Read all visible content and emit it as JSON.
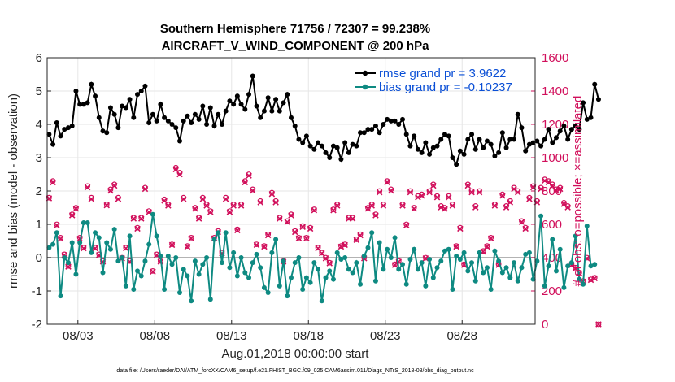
{
  "chart_data": {
    "type": "line",
    "title_line1": "Southern Hemisphere 71756 / 72307 = 99.238%",
    "title_line2": "AIRCRAFT_V_WIND_COMPONENT @ 200 hPa",
    "ylabel_left": "rmse and bias (model - observation)",
    "ylabel_right": "# of obs: o=possible; ×=assimilated",
    "xlabel": "Aug.01,2018 00:00:00 start",
    "footer": "data file: /Users/raeder/DAI/ATM_forcXX/CAM6_setup/f.e21.FHIST_BGC.f09_025.CAM6assim.011/Diags_NTrS_2018-08/obs_diag_output.nc",
    "ylim_left": [
      -2,
      6
    ],
    "yticks_left": [
      "-2",
      "-1",
      "0",
      "1",
      "2",
      "3",
      "4",
      "5",
      "6"
    ],
    "ylim_right": [
      0,
      1600
    ],
    "yticks_right": [
      "0",
      "200",
      "400",
      "600",
      "800",
      "1000",
      "1200",
      "1400",
      "1600"
    ],
    "xlim": [
      1.0,
      32.75
    ],
    "xticks": [
      {
        "day": 3,
        "label": "08/03"
      },
      {
        "day": 8,
        "label": "08/08"
      },
      {
        "day": 13,
        "label": "08/13"
      },
      {
        "day": 18,
        "label": "08/18"
      },
      {
        "day": 23,
        "label": "08/23"
      },
      {
        "day": 28,
        "label": "08/28"
      }
    ],
    "x_start_day": 1.125,
    "x_step_days": 0.25,
    "series": [
      {
        "name": "rmse grand pr = 3.9622",
        "axis": "left",
        "color": "#000000",
        "values": [
          3.7,
          3.4,
          4.05,
          3.65,
          3.85,
          3.9,
          3.95,
          5.0,
          4.6,
          4.6,
          4.65,
          5.2,
          4.85,
          4.2,
          3.8,
          3.75,
          4.5,
          4.3,
          3.9,
          4.55,
          4.5,
          4.75,
          4.2,
          4.9,
          5.0,
          5.15,
          4.05,
          4.3,
          4.1,
          4.6,
          4.2,
          4.1,
          4.0,
          3.9,
          3.5,
          4.1,
          4.25,
          4.05,
          4.3,
          4.15,
          4.55,
          4.0,
          4.5,
          3.95,
          4.3,
          4.0,
          4.4,
          4.7,
          4.6,
          4.85,
          4.6,
          4.45,
          4.9,
          5.45,
          4.55,
          4.2,
          4.4,
          4.8,
          4.4,
          4.75,
          4.4,
          4.65,
          4.9,
          4.2,
          3.95,
          3.55,
          3.45,
          3.65,
          3.35,
          3.25,
          3.45,
          3.35,
          3.15,
          3.0,
          3.35,
          3.3,
          2.95,
          3.45,
          3.15,
          3.4,
          3.35,
          3.75,
          3.75,
          3.85,
          3.85,
          3.95,
          3.75,
          4.0,
          4.15,
          4.1,
          4.1,
          4.0,
          4.15,
          3.7,
          3.35,
          3.65,
          3.25,
          3.15,
          3.45,
          3.1,
          3.3,
          3.35,
          3.55,
          3.7,
          3.65,
          3.0,
          2.8,
          3.2,
          3.1,
          3.55,
          3.7,
          3.25,
          3.55,
          3.3,
          3.5,
          3.4,
          3.05,
          3.15,
          3.75,
          3.3,
          3.55,
          3.55,
          4.3,
          3.9,
          3.2,
          3.4,
          3.45,
          3.5,
          3.35,
          3.55,
          3.85,
          3.45,
          3.6,
          3.8,
          3.95,
          3.55,
          3.85,
          3.95,
          3.85,
          4.65,
          4.15,
          4.2,
          5.2,
          4.75
        ],
        "marker": "circle"
      },
      {
        "name": "bias grand pr = -0.10237",
        "axis": "left",
        "color": "#0e8a82",
        "values": [
          0.3,
          0.4,
          0.75,
          -1.15,
          0.0,
          -0.15,
          0.45,
          -0.5,
          0.45,
          1.05,
          1.05,
          0.15,
          0.75,
          0.6,
          -0.45,
          0.45,
          0.25,
          0.85,
          -0.1,
          0.0,
          -0.85,
          0.65,
          -0.95,
          -0.4,
          -0.55,
          -0.1,
          0.4,
          1.3,
          0.65,
          0.05,
          -0.95,
          0.05,
          -0.2,
          0.0,
          -1.05,
          -0.35,
          -0.55,
          -1.3,
          -0.1,
          -0.5,
          -0.2,
          0.0,
          -1.25,
          0.55,
          0.75,
          -0.15,
          0.75,
          -0.3,
          0.15,
          -0.55,
          0.0,
          -0.45,
          -0.6,
          -0.15,
          0.1,
          -0.3,
          -0.9,
          -1.05,
          0.15,
          0.55,
          -0.85,
          -0.1,
          -1.15,
          -0.6,
          -0.15,
          0.0,
          -0.95,
          -0.6,
          -0.75,
          -0.15,
          -0.35,
          -1.3,
          -0.6,
          -0.4,
          -0.65,
          0.15,
          -0.05,
          0.0,
          -0.35,
          -0.45,
          -0.15,
          -0.8,
          0.05,
          0.3,
          0.75,
          -0.7,
          0.45,
          -0.35,
          0.25,
          0.0,
          0.6,
          -0.35,
          -0.2,
          -0.8,
          -0.05,
          0.25,
          -0.35,
          -0.15,
          -0.85,
          -0.05,
          -0.6,
          -0.3,
          -0.1,
          0.2,
          0.25,
          -0.95,
          0.05,
          -0.05,
          0.15,
          -0.4,
          -0.15,
          -0.7,
          0.15,
          -0.45,
          -0.3,
          -0.95,
          0.2,
          -0.1,
          -0.45,
          -0.3,
          -0.6,
          -0.15,
          -0.7,
          -0.3,
          0.1,
          0.15,
          -0.65,
          -0.1,
          1.25,
          -0.85,
          -0.25,
          0.55,
          -0.4,
          0.25,
          -0.9,
          -0.25,
          -0.15,
          0.65,
          -0.65,
          -0.8,
          0.95,
          -0.25,
          -0.2
        ],
        "marker": "circle"
      },
      {
        "name": "possible obs count",
        "axis": "right",
        "color": "#d10f5b",
        "values": [
          760,
          860,
          600,
          520,
          420,
          350,
          660,
          700,
          520,
          460,
          830,
          760,
          460,
          420,
          380,
          720,
          810,
          840,
          760,
          400,
          460,
          380,
          640,
          580,
          640,
          820,
          680,
          320,
          420,
          380,
          750,
          720,
          480,
          940,
          910,
          760,
          470,
          520,
          700,
          640,
          760,
          720,
          680,
          520,
          560,
          430,
          760,
          680,
          720,
          570,
          720,
          860,
          900,
          810,
          480,
          740,
          470,
          540,
          790,
          740,
          640,
          380,
          620,
          660,
          560,
          520,
          590,
          520,
          580,
          690,
          460,
          430,
          400,
          370,
          690,
          720,
          470,
          480,
          640,
          640,
          510,
          540,
          400,
          700,
          720,
          660,
          800,
          720,
          860,
          810,
          360,
          380,
          720,
          600,
          800,
          700,
          770,
          780,
          400,
          800,
          840,
          770,
          710,
          700,
          770,
          720,
          470,
          580,
          360,
          840,
          800,
          710,
          800,
          440,
          470,
          520,
          720,
          360,
          780,
          710,
          740,
          820,
          800,
          620,
          580,
          760,
          830,
          740,
          820,
          870,
          860,
          840,
          810,
          820,
          730,
          710,
          360,
          340,
          310,
          260,
          400,
          270,
          280,
          0
        ],
        "marker": "circle"
      },
      {
        "name": "assimilated obs count",
        "axis": "right",
        "color": "#d10f5b",
        "values": [
          756,
          852,
          594,
          514,
          416,
          346,
          654,
          694,
          514,
          456,
          822,
          752,
          456,
          416,
          376,
          714,
          802,
          832,
          752,
          396,
          456,
          376,
          634,
          574,
          634,
          812,
          674,
          316,
          416,
          376,
          742,
          712,
          476,
          930,
          900,
          752,
          466,
          516,
          694,
          634,
          752,
          712,
          674,
          516,
          554,
          426,
          752,
          674,
          712,
          564,
          712,
          852,
          892,
          802,
          476,
          732,
          466,
          534,
          782,
          732,
          634,
          376,
          614,
          654,
          554,
          516,
          584,
          516,
          574,
          684,
          456,
          426,
          396,
          366,
          684,
          712,
          466,
          476,
          634,
          634,
          506,
          534,
          396,
          694,
          712,
          654,
          792,
          712,
          852,
          802,
          356,
          376,
          712,
          594,
          792,
          694,
          762,
          772,
          396,
          792,
          832,
          762,
          702,
          694,
          762,
          712,
          466,
          574,
          356,
          832,
          792,
          702,
          792,
          436,
          466,
          516,
          712,
          356,
          772,
          702,
          732,
          812,
          792,
          614,
          574,
          752,
          822,
          732,
          812,
          862,
          852,
          832,
          802,
          812,
          722,
          702,
          356,
          336,
          306,
          256,
          396,
          266,
          276,
          0
        ],
        "marker": "x"
      }
    ],
    "zero_line": 0
  },
  "colors": {
    "rmse": "#000000",
    "bias": "#0e8a82",
    "counts": "#d10f5b",
    "legend_text": "#0a4fd6",
    "grid": "#e6e6e6",
    "zero_line": "#b3b3b3"
  }
}
